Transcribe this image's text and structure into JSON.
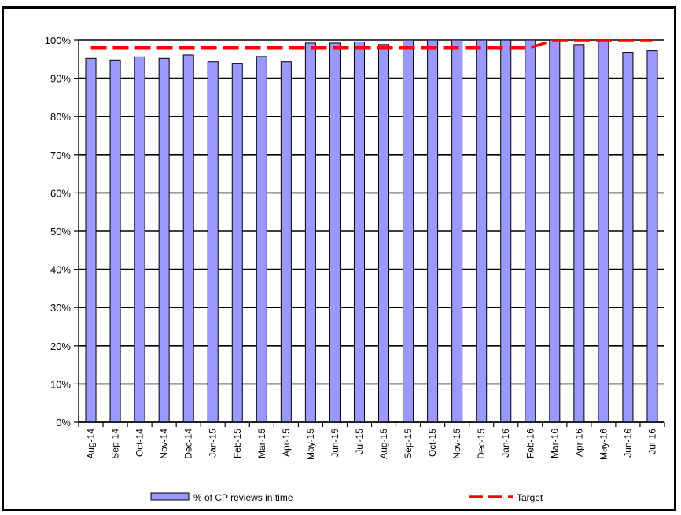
{
  "chart_data": {
    "type": "bar",
    "categories": [
      "Aug-14",
      "Sep-14",
      "Oct-14",
      "Nov-14",
      "Dec-14",
      "Jan-15",
      "Feb-15",
      "Mar-15",
      "Apr-15",
      "May-15",
      "Jun-15",
      "Jul-15",
      "Aug-15",
      "Sep-15",
      "Oct-15",
      "Nov-15",
      "Dec-15",
      "Jan-16",
      "Feb-16",
      "Mar-16",
      "Apr-16",
      "May-16",
      "Jun-16",
      "Jul-16"
    ],
    "series": [
      {
        "name": "% of CP reviews in time",
        "kind": "bar",
        "color": "#9999ff",
        "values": [
          95.2,
          94.8,
          95.6,
          95.2,
          96.1,
          94.3,
          93.9,
          95.7,
          94.3,
          99.2,
          99.2,
          99.5,
          98.8,
          100,
          100,
          100,
          100,
          100,
          100,
          100,
          98.8,
          100,
          96.8,
          97.2
        ]
      },
      {
        "name": "Target",
        "kind": "line",
        "style": "dashed",
        "color": "#ff0000",
        "values": [
          98,
          98,
          98,
          98,
          98,
          98,
          98,
          98,
          98,
          98,
          98,
          98,
          98,
          98,
          98,
          98,
          98,
          98,
          98,
          100,
          100,
          100,
          100,
          100
        ]
      }
    ],
    "ylim": [
      0,
      100
    ],
    "yticks": [
      "0%",
      "10%",
      "20%",
      "30%",
      "40%",
      "50%",
      "60%",
      "70%",
      "80%",
      "90%",
      "100%"
    ],
    "grid": true,
    "legend": "bottom"
  }
}
